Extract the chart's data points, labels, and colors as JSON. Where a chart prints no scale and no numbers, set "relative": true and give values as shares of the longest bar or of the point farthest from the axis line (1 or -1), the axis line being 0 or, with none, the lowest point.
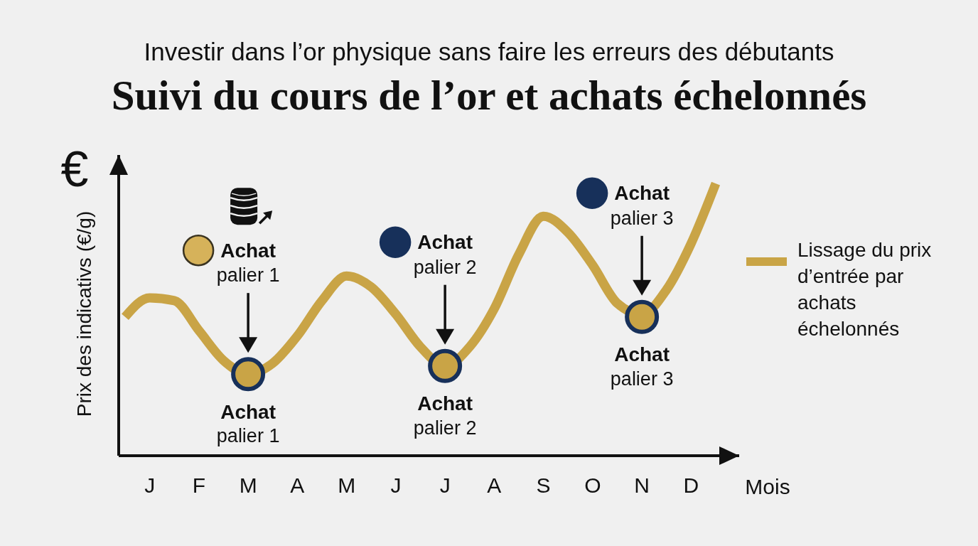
{
  "chart_data": {
    "type": "line",
    "subtitle": "Investir dans l’or physique sans faire les erreurs des débutants",
    "title": "Suivi du cours de l’or et achats échelonnés",
    "xlabel": "Mois",
    "ylabel": "Prix des indicativs (€/g)",
    "relative": true,
    "categories": [
      null,
      "J",
      null,
      "F",
      null,
      "M",
      null,
      "A",
      null,
      "M",
      null,
      "J",
      null,
      "J",
      null,
      "A",
      null,
      "S",
      null,
      "O",
      null,
      "N",
      null,
      "D",
      null
    ],
    "series": [
      {
        "name": "Lissage du prix d’entrée par achats échelonnés",
        "color": "#c9a446",
        "values": [
          0.51,
          0.58,
          0.57,
          0.46,
          0.35,
          0.3,
          0.34,
          0.44,
          0.57,
          0.66,
          0.62,
          0.52,
          0.4,
          0.33,
          0.4,
          0.54,
          0.74,
          0.88,
          0.82,
          0.7,
          0.56,
          0.52,
          0.61,
          0.78,
          1.0
        ]
      },
      {
        "type": "scatter",
        "color": "#c9a446",
        "marker": "circle",
        "values": [
          null,
          null,
          null,
          null,
          null,
          0.3,
          null,
          null,
          null,
          null,
          null,
          null,
          null,
          0.33,
          null,
          null,
          null,
          null,
          null,
          null,
          null,
          0.51,
          null,
          null,
          null
        ]
      }
    ],
    "line_style": "solid",
    "legend": "right",
    "annotations": [
      "€",
      "Achat palier 1",
      "Achat palier 2",
      "Achat palier 3",
      "Achat palier 1",
      "Achat palier 2",
      "Achat palier 3"
    ]
  }
}
